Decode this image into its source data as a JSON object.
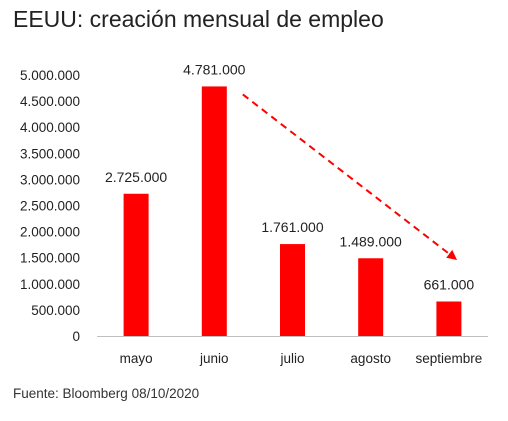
{
  "chart_data": {
    "type": "bar",
    "title": "EEUU: creación mensual de empleo",
    "categories": [
      "mayo",
      "junio",
      "julio",
      "agosto",
      "septiembre"
    ],
    "values": [
      2725000,
      4781000,
      1761000,
      1489000,
      661000
    ],
    "data_labels": [
      "2.725.000",
      "4.781.000",
      "1.761.000",
      "1.489.000",
      "661.000"
    ],
    "ylim": [
      0,
      5000000
    ],
    "y_ticks": [
      0,
      500000,
      1000000,
      1500000,
      2000000,
      2500000,
      3000000,
      3500000,
      4000000,
      4500000,
      5000000
    ],
    "y_tick_labels": [
      "0",
      "500.000",
      "1.000.000",
      "1.500.000",
      "2.000.000",
      "2.500.000",
      "3.000.000",
      "3.500.000",
      "4.000.000",
      "4.500.000",
      "5.000.000"
    ],
    "xlabel": "",
    "ylabel": "",
    "grid": false,
    "bar_color": "#ff0000",
    "axis_color": "#bfbfbf",
    "annotation": {
      "type": "dashed-arrow",
      "from_category": "junio",
      "to_category": "septiembre",
      "color": "#ff0000"
    },
    "source": "Fuente: Bloomberg 08/10/2020"
  }
}
